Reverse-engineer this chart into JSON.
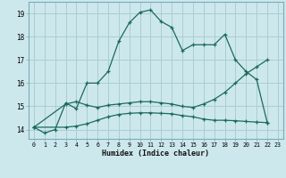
{
  "xlabel": "Humidex (Indice chaleur)",
  "bg_color": "#cde8ec",
  "grid_color": "#aacdd4",
  "line_color": "#1a6b5a",
  "line1_x": [
    0,
    1,
    2,
    3,
    4,
    5,
    6,
    7,
    8,
    9,
    10,
    11,
    12,
    13,
    14,
    15,
    16,
    17,
    18,
    19,
    20,
    21,
    22
  ],
  "line1_y": [
    14.1,
    13.85,
    14.0,
    15.15,
    14.9,
    16.0,
    16.0,
    16.5,
    17.8,
    18.6,
    19.05,
    19.15,
    18.65,
    18.4,
    17.4,
    17.65,
    17.65,
    17.65,
    18.1,
    17.0,
    16.5,
    16.15,
    14.3
  ],
  "line2_x": [
    0,
    3,
    4,
    5,
    6,
    7,
    8,
    9,
    10,
    11,
    12,
    13,
    14,
    15,
    16,
    17,
    18,
    19,
    20,
    21,
    22
  ],
  "line2_y": [
    14.1,
    15.1,
    15.2,
    15.05,
    14.95,
    15.05,
    15.1,
    15.15,
    15.2,
    15.2,
    15.15,
    15.1,
    15.0,
    14.95,
    15.1,
    15.3,
    15.6,
    16.0,
    16.4,
    16.7,
    17.0
  ],
  "line3_x": [
    0,
    3,
    4,
    5,
    6,
    7,
    8,
    9,
    10,
    11,
    12,
    13,
    14,
    15,
    16,
    17,
    18,
    19,
    20,
    21,
    22
  ],
  "line3_y": [
    14.1,
    14.1,
    14.15,
    14.25,
    14.4,
    14.55,
    14.65,
    14.7,
    14.72,
    14.72,
    14.7,
    14.68,
    14.6,
    14.55,
    14.45,
    14.4,
    14.4,
    14.38,
    14.35,
    14.32,
    14.3
  ],
  "ylim": [
    13.6,
    19.5
  ],
  "yticks": [
    14,
    15,
    16,
    17,
    18,
    19
  ],
  "xticks": [
    0,
    1,
    2,
    3,
    4,
    5,
    6,
    7,
    8,
    9,
    10,
    11,
    12,
    13,
    14,
    15,
    16,
    17,
    18,
    19,
    20,
    21,
    22,
    23
  ]
}
